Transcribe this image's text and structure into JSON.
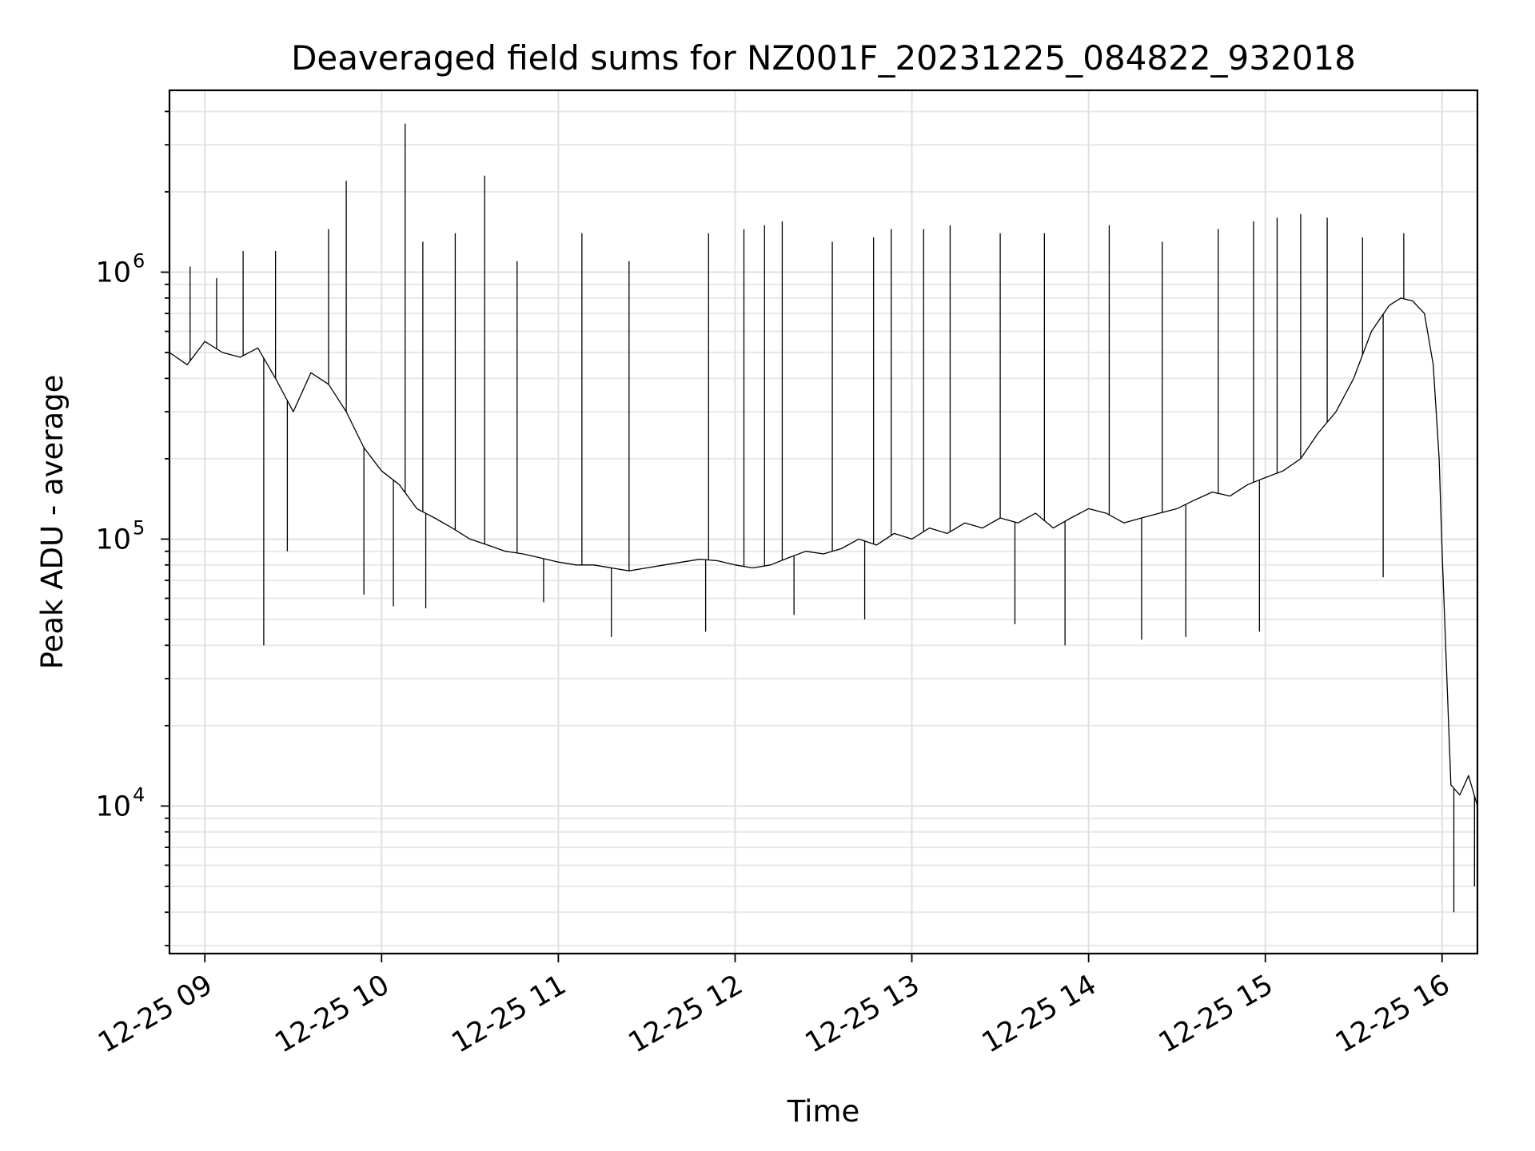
{
  "chart_data": {
    "type": "line",
    "title": "Deaveraged field sums for NZ001F_20231225_084822_932018",
    "xlabel": "Time",
    "ylabel": "Peak ADU - average",
    "yscale": "log",
    "ylim": [
      2800,
      4800000
    ],
    "xlim": [
      "2023-12-25 08:48",
      "2023-12-25 16:12"
    ],
    "grid": true,
    "x_ticks": [
      "12-25 09",
      "12-25 10",
      "12-25 11",
      "12-25 12",
      "12-25 13",
      "12-25 14",
      "12-25 15",
      "12-25 16"
    ],
    "y_ticks": [
      {
        "value": 10000,
        "base": "10",
        "exp": "4"
      },
      {
        "value": 100000,
        "base": "10",
        "exp": "5"
      },
      {
        "value": 1000000,
        "base": "10",
        "exp": "6"
      }
    ],
    "series": [
      {
        "color": "#000000",
        "x": [
          "2023-12-25 08:48",
          "2023-12-25 08:54",
          "2023-12-25 09:00",
          "2023-12-25 09:06",
          "2023-12-25 09:12",
          "2023-12-25 09:18",
          "2023-12-25 09:24",
          "2023-12-25 09:30",
          "2023-12-25 09:36",
          "2023-12-25 09:42",
          "2023-12-25 09:48",
          "2023-12-25 09:54",
          "2023-12-25 10:00",
          "2023-12-25 10:06",
          "2023-12-25 10:12",
          "2023-12-25 10:18",
          "2023-12-25 10:24",
          "2023-12-25 10:30",
          "2023-12-25 10:36",
          "2023-12-25 10:42",
          "2023-12-25 10:48",
          "2023-12-25 10:54",
          "2023-12-25 11:00",
          "2023-12-25 11:06",
          "2023-12-25 11:12",
          "2023-12-25 11:18",
          "2023-12-25 11:24",
          "2023-12-25 11:30",
          "2023-12-25 11:36",
          "2023-12-25 11:42",
          "2023-12-25 11:48",
          "2023-12-25 11:54",
          "2023-12-25 12:00",
          "2023-12-25 12:06",
          "2023-12-25 12:12",
          "2023-12-25 12:18",
          "2023-12-25 12:24",
          "2023-12-25 12:30",
          "2023-12-25 12:36",
          "2023-12-25 12:42",
          "2023-12-25 12:48",
          "2023-12-25 12:54",
          "2023-12-25 13:00",
          "2023-12-25 13:06",
          "2023-12-25 13:12",
          "2023-12-25 13:18",
          "2023-12-25 13:24",
          "2023-12-25 13:30",
          "2023-12-25 13:36",
          "2023-12-25 13:42",
          "2023-12-25 13:48",
          "2023-12-25 13:54",
          "2023-12-25 14:00",
          "2023-12-25 14:06",
          "2023-12-25 14:12",
          "2023-12-25 14:18",
          "2023-12-25 14:24",
          "2023-12-25 14:30",
          "2023-12-25 14:36",
          "2023-12-25 14:42",
          "2023-12-25 14:48",
          "2023-12-25 14:54",
          "2023-12-25 15:00",
          "2023-12-25 15:06",
          "2023-12-25 15:12",
          "2023-12-25 15:18",
          "2023-12-25 15:24",
          "2023-12-25 15:30",
          "2023-12-25 15:36",
          "2023-12-25 15:42",
          "2023-12-25 15:46",
          "2023-12-25 15:50",
          "2023-12-25 15:54",
          "2023-12-25 15:57",
          "2023-12-25 15:59",
          "2023-12-25 16:00",
          "2023-12-25 16:03",
          "2023-12-25 16:06",
          "2023-12-25 16:09",
          "2023-12-25 16:12"
        ],
        "y": [
          500000,
          450000,
          550000,
          500000,
          480000,
          520000,
          400000,
          300000,
          420000,
          380000,
          300000,
          220000,
          180000,
          160000,
          130000,
          120000,
          110000,
          100000,
          95000,
          90000,
          88000,
          85000,
          82000,
          80000,
          80000,
          78000,
          76000,
          78000,
          80000,
          82000,
          84000,
          83000,
          80000,
          78000,
          80000,
          85000,
          90000,
          88000,
          92000,
          100000,
          95000,
          105000,
          100000,
          110000,
          105000,
          115000,
          110000,
          120000,
          115000,
          125000,
          110000,
          120000,
          130000,
          125000,
          115000,
          120000,
          125000,
          130000,
          140000,
          150000,
          145000,
          160000,
          170000,
          180000,
          200000,
          250000,
          300000,
          400000,
          600000,
          750000,
          800000,
          780000,
          700000,
          450000,
          200000,
          90000,
          12000,
          11000,
          13000,
          10000
        ],
        "peaks": [
          {
            "x": "2023-12-25 08:55",
            "y": 1050000
          },
          {
            "x": "2023-12-25 09:04",
            "y": 950000
          },
          {
            "x": "2023-12-25 09:13",
            "y": 1200000
          },
          {
            "x": "2023-12-25 09:24",
            "y": 1200000
          },
          {
            "x": "2023-12-25 09:42",
            "y": 1450000
          },
          {
            "x": "2023-12-25 09:48",
            "y": 2200000
          },
          {
            "x": "2023-12-25 10:08",
            "y": 3600000
          },
          {
            "x": "2023-12-25 10:14",
            "y": 1300000
          },
          {
            "x": "2023-12-25 10:25",
            "y": 1400000
          },
          {
            "x": "2023-12-25 10:35",
            "y": 2300000
          },
          {
            "x": "2023-12-25 10:46",
            "y": 1100000
          },
          {
            "x": "2023-12-25 11:08",
            "y": 1400000
          },
          {
            "x": "2023-12-25 11:24",
            "y": 1100000
          },
          {
            "x": "2023-12-25 11:51",
            "y": 1400000
          },
          {
            "x": "2023-12-25 12:03",
            "y": 1450000
          },
          {
            "x": "2023-12-25 12:10",
            "y": 1500000
          },
          {
            "x": "2023-12-25 12:16",
            "y": 1550000
          },
          {
            "x": "2023-12-25 12:33",
            "y": 1300000
          },
          {
            "x": "2023-12-25 12:47",
            "y": 1350000
          },
          {
            "x": "2023-12-25 12:53",
            "y": 1450000
          },
          {
            "x": "2023-12-25 13:04",
            "y": 1450000
          },
          {
            "x": "2023-12-25 13:13",
            "y": 1500000
          },
          {
            "x": "2023-12-25 13:30",
            "y": 1400000
          },
          {
            "x": "2023-12-25 13:45",
            "y": 1400000
          },
          {
            "x": "2023-12-25 14:07",
            "y": 1500000
          },
          {
            "x": "2023-12-25 14:25",
            "y": 1300000
          },
          {
            "x": "2023-12-25 14:44",
            "y": 1450000
          },
          {
            "x": "2023-12-25 14:56",
            "y": 1550000
          },
          {
            "x": "2023-12-25 15:04",
            "y": 1600000
          },
          {
            "x": "2023-12-25 15:12",
            "y": 1650000
          },
          {
            "x": "2023-12-25 15:21",
            "y": 1600000
          },
          {
            "x": "2023-12-25 15:33",
            "y": 1350000
          },
          {
            "x": "2023-12-25 15:47",
            "y": 1400000
          }
        ],
        "dips": [
          {
            "x": "2023-12-25 09:20",
            "y": 40000
          },
          {
            "x": "2023-12-25 09:28",
            "y": 90000
          },
          {
            "x": "2023-12-25 09:54",
            "y": 62000
          },
          {
            "x": "2023-12-25 10:04",
            "y": 56000
          },
          {
            "x": "2023-12-25 10:15",
            "y": 55000
          },
          {
            "x": "2023-12-25 10:55",
            "y": 58000
          },
          {
            "x": "2023-12-25 11:18",
            "y": 43000
          },
          {
            "x": "2023-12-25 11:50",
            "y": 45000
          },
          {
            "x": "2023-12-25 12:20",
            "y": 52000
          },
          {
            "x": "2023-12-25 12:44",
            "y": 50000
          },
          {
            "x": "2023-12-25 13:35",
            "y": 48000
          },
          {
            "x": "2023-12-25 13:52",
            "y": 40000
          },
          {
            "x": "2023-12-25 14:18",
            "y": 42000
          },
          {
            "x": "2023-12-25 14:33",
            "y": 43000
          },
          {
            "x": "2023-12-25 14:58",
            "y": 45000
          },
          {
            "x": "2023-12-25 15:40",
            "y": 72000
          },
          {
            "x": "2023-12-25 16:04",
            "y": 4000
          },
          {
            "x": "2023-12-25 16:11",
            "y": 5000
          }
        ]
      }
    ]
  }
}
